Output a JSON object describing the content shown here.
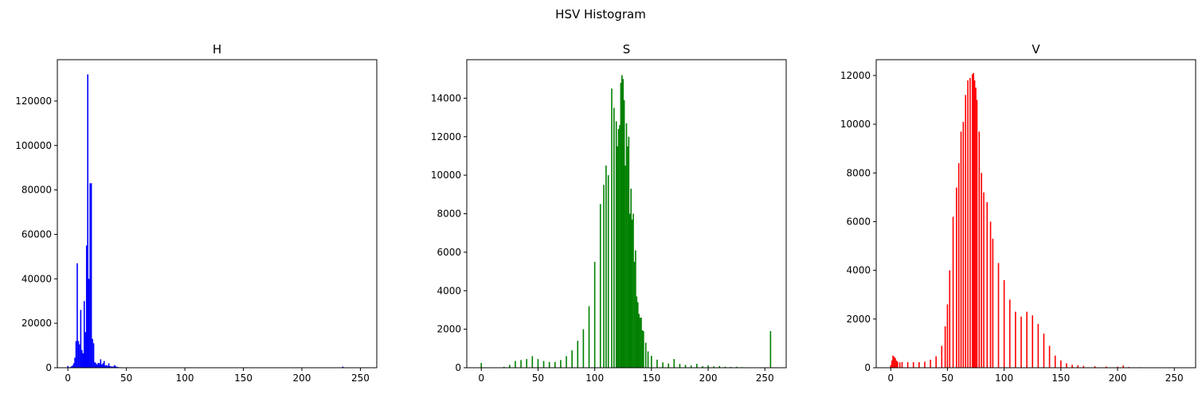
{
  "figure": {
    "title": "HSV Histogram"
  },
  "chart_data": [
    {
      "type": "bar",
      "title": "H",
      "color": "#0000ff",
      "xlim": [
        -9,
        264
      ],
      "ylim": [
        0,
        138600
      ],
      "xticks": [
        0,
        50,
        100,
        150,
        200,
        250
      ],
      "yticks": [
        0,
        20000,
        40000,
        60000,
        80000,
        100000,
        120000
      ],
      "x": [
        0,
        1,
        2,
        3,
        4,
        5,
        6,
        7,
        8,
        9,
        10,
        11,
        12,
        13,
        14,
        15,
        16,
        17,
        18,
        19,
        20,
        21,
        22,
        23,
        24,
        25,
        26,
        27,
        28,
        29,
        30,
        31,
        32,
        33,
        34,
        35,
        36,
        37,
        38,
        39,
        40,
        41,
        42,
        43,
        44,
        45,
        46,
        47,
        48,
        49,
        50,
        60,
        70,
        80,
        90,
        100,
        110,
        120,
        130,
        140,
        150,
        160,
        170,
        180,
        190,
        200,
        210,
        220,
        230,
        235,
        240,
        250
      ],
      "values": [
        800,
        200,
        300,
        600,
        1000,
        2000,
        4500,
        12000,
        47000,
        12000,
        10500,
        26000,
        8000,
        6500,
        30000,
        16000,
        55000,
        132000,
        40000,
        83000,
        83000,
        13000,
        11000,
        2500,
        2000,
        1500,
        2200,
        2000,
        3800,
        1500,
        2000,
        3000,
        1000,
        1200,
        800,
        2000,
        700,
        600,
        500,
        600,
        1200,
        600,
        400,
        300,
        200,
        200,
        150,
        150,
        120,
        100,
        200,
        100,
        50,
        40,
        30,
        20,
        20,
        20,
        20,
        20,
        20,
        20,
        20,
        20,
        20,
        20,
        20,
        20,
        20,
        500,
        20,
        20
      ]
    },
    {
      "type": "bar",
      "title": "S",
      "color": "#008000",
      "xlim": [
        -12.8,
        268.8
      ],
      "ylim": [
        0,
        16000
      ],
      "xticks": [
        0,
        50,
        100,
        150,
        200,
        250
      ],
      "yticks": [
        0,
        2000,
        4000,
        6000,
        8000,
        10000,
        12000,
        14000
      ],
      "x": [
        0,
        20,
        25,
        30,
        35,
        40,
        45,
        50,
        55,
        60,
        65,
        70,
        75,
        80,
        85,
        90,
        95,
        100,
        105,
        108,
        110,
        112,
        115,
        117,
        119,
        120,
        121,
        122,
        123,
        124,
        125,
        126,
        127,
        128,
        129,
        130,
        131,
        132,
        133,
        134,
        135,
        136,
        137,
        138,
        139,
        140,
        141,
        142,
        143,
        145,
        147,
        150,
        155,
        160,
        165,
        170,
        175,
        180,
        185,
        190,
        195,
        200,
        205,
        210,
        215,
        220,
        225,
        230,
        235,
        255
      ],
      "values": [
        250,
        50,
        150,
        350,
        400,
        450,
        600,
        450,
        350,
        300,
        300,
        400,
        600,
        900,
        1400,
        2000,
        3200,
        5500,
        8500,
        9500,
        10500,
        10000,
        14500,
        13500,
        12800,
        11500,
        12400,
        12600,
        14800,
        15200,
        15000,
        13900,
        10500,
        12700,
        11500,
        12000,
        8000,
        9300,
        7700,
        8000,
        5500,
        6100,
        3700,
        3400,
        2800,
        2600,
        2600,
        1950,
        1900,
        1300,
        850,
        620,
        420,
        280,
        220,
        450,
        200,
        150,
        120,
        200,
        80,
        120,
        70,
        90,
        50,
        40,
        50,
        30,
        20,
        1900
      ]
    },
    {
      "type": "bar",
      "title": "V",
      "color": "#ff0000",
      "xlim": [
        -12.8,
        268.8
      ],
      "ylim": [
        0,
        12650
      ],
      "xticks": [
        0,
        50,
        100,
        150,
        200,
        250
      ],
      "yticks": [
        0,
        2000,
        4000,
        6000,
        8000,
        10000,
        12000
      ],
      "x": [
        0,
        1,
        2,
        3,
        4,
        5,
        6,
        8,
        10,
        15,
        20,
        25,
        30,
        35,
        40,
        45,
        48,
        50,
        52,
        55,
        58,
        60,
        62,
        64,
        66,
        68,
        70,
        72,
        73,
        74,
        75,
        76,
        78,
        80,
        82,
        85,
        88,
        90,
        95,
        100,
        105,
        110,
        115,
        120,
        125,
        130,
        135,
        140,
        145,
        150,
        155,
        160,
        165,
        170,
        180,
        190,
        200,
        205,
        210,
        220,
        230,
        240,
        250
      ],
      "values": [
        100,
        300,
        500,
        450,
        400,
        300,
        250,
        220,
        230,
        230,
        230,
        230,
        250,
        330,
        470,
        900,
        1700,
        2600,
        4000,
        6200,
        7400,
        8400,
        9700,
        10100,
        11200,
        11800,
        11900,
        12050,
        12100,
        11800,
        11500,
        11000,
        9700,
        8000,
        7200,
        6800,
        6000,
        5300,
        4300,
        3600,
        2800,
        2300,
        2100,
        2300,
        2150,
        1800,
        1400,
        900,
        500,
        300,
        180,
        120,
        100,
        80,
        60,
        50,
        40,
        90,
        30,
        20,
        10,
        10,
        10
      ]
    }
  ]
}
